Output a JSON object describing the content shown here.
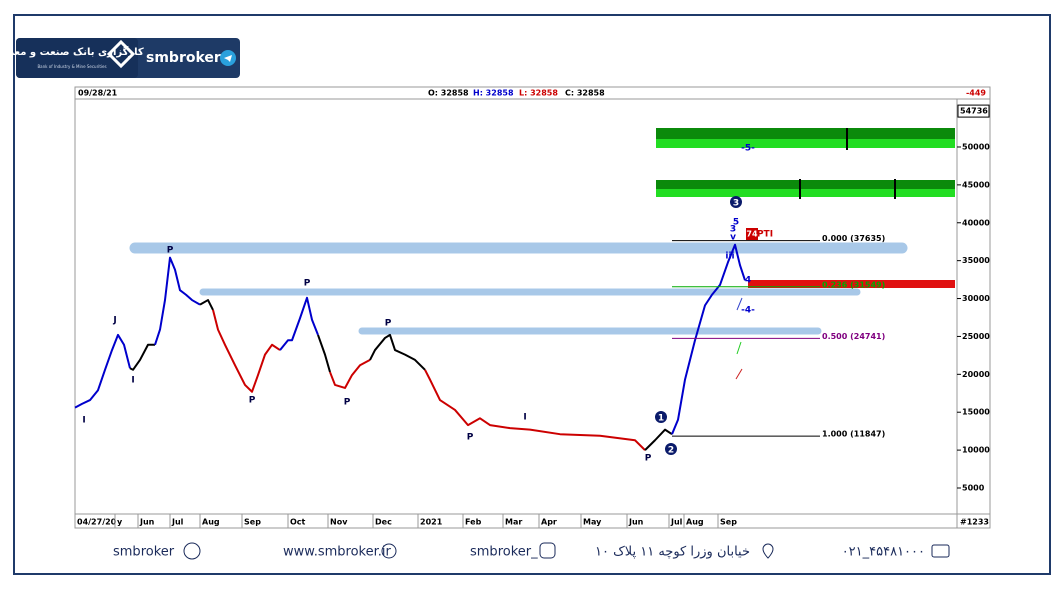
{
  "header": {
    "brand": "smbroker",
    "logo_title": "کارگزاری بانک صنعت و معدن",
    "logo_subtitle": "Bank of Industry & Mine Securities"
  },
  "chart_data": {
    "type": "line",
    "info": {
      "date": "09/28/21",
      "open": "O: 32858",
      "high": "H: 32858",
      "low": "L: 32858",
      "close": "C: 32858",
      "change": "-449"
    },
    "bar_count": "#1233",
    "last_value": 54736,
    "xlim": [
      0,
      882
    ],
    "ylim": [
      1700,
      56200
    ],
    "yticks": [
      5000,
      10000,
      15000,
      20000,
      25000,
      30000,
      35000,
      40000,
      45000,
      50000
    ],
    "xticks": [
      {
        "value": 0,
        "label": "04/27/20"
      },
      {
        "value": 40,
        "label": "y"
      },
      {
        "value": 63,
        "label": "Jun"
      },
      {
        "value": 95,
        "label": "Jul"
      },
      {
        "value": 125,
        "label": "Aug"
      },
      {
        "value": 167,
        "label": "Sep"
      },
      {
        "value": 213,
        "label": "Oct"
      },
      {
        "value": 253,
        "label": "Nov"
      },
      {
        "value": 298,
        "label": "Dec"
      },
      {
        "value": 343,
        "label": "2021"
      },
      {
        "value": 388,
        "label": "Feb"
      },
      {
        "value": 428,
        "label": "Mar"
      },
      {
        "value": 464,
        "label": "Apr"
      },
      {
        "value": 506,
        "label": "May"
      },
      {
        "value": 552,
        "label": "Jun"
      },
      {
        "value": 594,
        "label": "Jul"
      },
      {
        "value": 609,
        "label": "Aug"
      },
      {
        "value": 643,
        "label": "Sep"
      }
    ],
    "x": [
      0,
      7,
      15,
      23,
      30,
      37,
      43,
      49,
      55,
      58,
      65,
      73,
      80,
      85,
      90,
      95,
      100,
      105,
      111,
      117,
      125,
      133,
      138,
      143,
      150,
      160,
      170,
      177,
      183,
      190,
      197,
      205,
      213,
      217,
      225,
      232,
      237,
      243,
      250,
      255,
      260,
      270,
      277,
      285,
      295,
      300,
      310,
      315,
      320,
      330,
      340,
      350,
      355,
      365,
      380,
      393,
      405,
      415,
      435,
      455,
      485,
      525,
      560,
      570,
      580,
      590,
      597,
      603,
      610,
      620,
      630,
      637,
      645,
      653,
      660,
      665,
      670
    ],
    "series": [
      {
        "values": [
          15600,
          16100,
          16600,
          17900,
          20600,
          23200,
          25200,
          23900,
          20800,
          20600,
          21900,
          23900,
          23900,
          25900,
          29800,
          35400,
          33800,
          31100,
          30500,
          29800,
          29200,
          29800,
          28500,
          25900,
          23900,
          21200,
          18600,
          17700,
          19900,
          22600,
          23900,
          23200,
          24500,
          24500,
          27400,
          30100,
          27200,
          25200,
          22600,
          20300,
          18600,
          18200,
          19900,
          21200,
          21900,
          23200,
          24800,
          25200,
          23200,
          22600,
          21900,
          20600,
          19300,
          16600,
          15300,
          13300,
          14200,
          13300,
          12900,
          12700,
          12100,
          11900,
          11300,
          10000,
          11300,
          12700,
          12100,
          14000,
          19300,
          24500,
          29100,
          30500,
          31800,
          34800,
          37100,
          34400,
          32400
        ],
        "segment_colors": [
          "#0000cc",
          "#0000cc",
          "#0000cc",
          "#0000cc",
          "#0000cc",
          "#0000cc",
          "#0000cc",
          "#0000cc",
          "#0000cc",
          "#000000",
          "#000000",
          "#000000",
          "#000000",
          "#0000cc",
          "#0000cc",
          "#0000cc",
          "#0000cc",
          "#0000cc",
          "#0000cc",
          "#0000cc",
          "#0000cc",
          "#000000",
          "#000000",
          "#cc0000",
          "#cc0000",
          "#cc0000",
          "#cc0000",
          "#cc0000",
          "#cc0000",
          "#cc0000",
          "#cc0000",
          "#cc0000",
          "#0000cc",
          "#0000cc",
          "#0000cc",
          "#0000cc",
          "#0000cc",
          "#0000cc",
          "#000000",
          "#000000",
          "#cc0000",
          "#cc0000",
          "#cc0000",
          "#cc0000",
          "#cc0000",
          "#000000",
          "#000000",
          "#000000",
          "#000000",
          "#000000",
          "#000000",
          "#000000",
          "#cc0000",
          "#cc0000",
          "#cc0000",
          "#cc0000",
          "#cc0000",
          "#cc0000",
          "#cc0000",
          "#cc0000",
          "#cc0000",
          "#cc0000",
          "#cc0000",
          "#cc0000",
          "#000000",
          "#000000",
          "#000000",
          "#0000cc",
          "#0000cc",
          "#0000cc",
          "#0000cc",
          "#0000cc",
          "#0000cc",
          "#0000cc",
          "#0000cc",
          "#0000cc",
          "#0000cc"
        ]
      }
    ],
    "fib_levels": [
      {
        "label": "0.000 (37635)",
        "value": 37635,
        "color": "#000000"
      },
      {
        "label": "0.236 (31549)",
        "value": 31549,
        "color": "#00aa00"
      },
      {
        "label": "0.500 (24741)",
        "value": 24741,
        "color": "#800080"
      },
      {
        "label": "1.000 (11847)",
        "value": 11847,
        "color": "#000000"
      }
    ],
    "annotations": [
      {
        "text": "I",
        "color": "#000044"
      },
      {
        "text": "J",
        "color": "#000044"
      },
      {
        "text": "I",
        "color": "#000044"
      },
      {
        "text": "P",
        "color": "#000044"
      },
      {
        "text": "P",
        "color": "#000044"
      },
      {
        "text": "P",
        "color": "#000044"
      },
      {
        "text": "P",
        "color": "#000044"
      },
      {
        "text": "P",
        "color": "#000044"
      },
      {
        "text": "P",
        "color": "#000044"
      },
      {
        "text": "I",
        "color": "#000044"
      },
      {
        "text": "P",
        "color": "#000044"
      },
      {
        "text": "1",
        "color": "#0a1a6a"
      },
      {
        "text": "2",
        "color": "#0a1a6a"
      },
      {
        "text": "3",
        "color": "#0a1a6a"
      },
      {
        "text": "-5-",
        "color": "#0000cc"
      },
      {
        "text": "5",
        "color": "#0000cc"
      },
      {
        "text": "3",
        "color": "#0000cc"
      },
      {
        "text": "v",
        "color": "#0000cc"
      },
      {
        "text": "iii",
        "color": "#0000cc"
      },
      {
        "text": "4",
        "color": "#0000cc"
      },
      {
        "text": "-4-",
        "color": "#0000cc"
      },
      {
        "text": "74",
        "color": "#cc0000"
      },
      {
        "text": "PTI",
        "color": "#cc0000"
      }
    ]
  },
  "footer": {
    "telegram": "smbroker",
    "website": "www.smbroker.ir",
    "instagram": "smbroker_",
    "address": "خیابان وزرا کوچه ۱۱ پلاک ۱۰",
    "phone": "۰۲۱_۴۵۴۸۱۰۰۰"
  }
}
